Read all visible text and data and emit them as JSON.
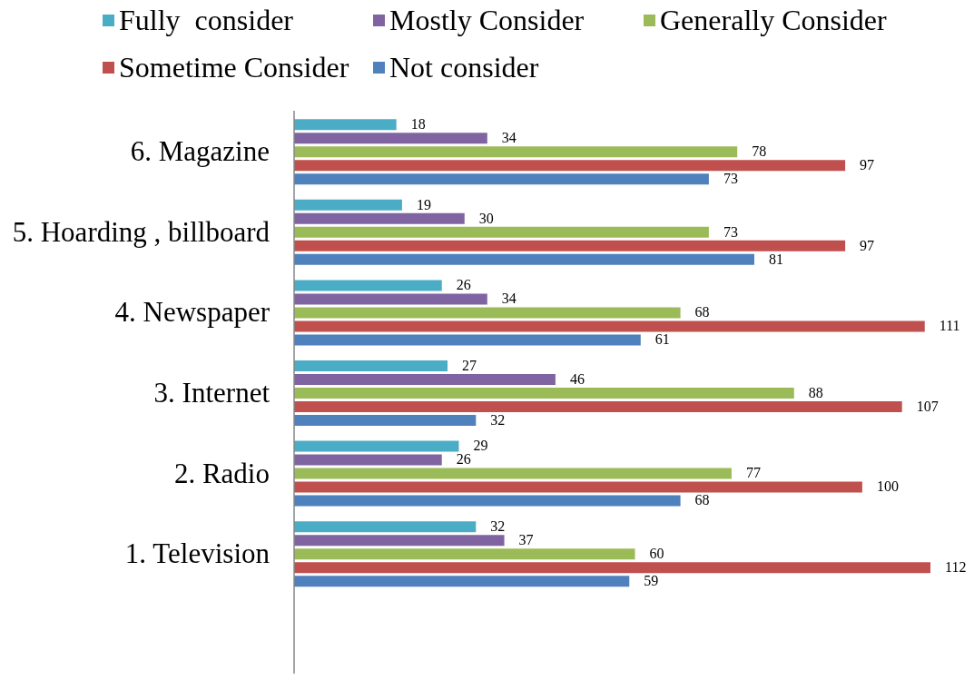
{
  "chart_data": {
    "type": "bar",
    "orientation": "horizontal",
    "categories": [
      "6. Magazine",
      "5. Hoarding , billboard",
      "4. Newspaper",
      "3. Internet",
      "2. Radio",
      "1. Television",
      null
    ],
    "series": [
      {
        "name": "Fully  consider",
        "color": "#4bacc6",
        "values": [
          18,
          19,
          26,
          27,
          29,
          32,
          null
        ]
      },
      {
        "name": "Mostly Consider",
        "color": "#8064a2",
        "values": [
          34,
          30,
          34,
          46,
          26,
          37,
          null
        ]
      },
      {
        "name": "Generally Consider",
        "color": "#9bbb59",
        "values": [
          78,
          73,
          68,
          88,
          77,
          60,
          null
        ]
      },
      {
        "name": "Sometime Consider",
        "color": "#c0504d",
        "values": [
          97,
          97,
          111,
          107,
          100,
          112,
          null
        ]
      },
      {
        "name": "Not consider",
        "color": "#4f81bd",
        "values": [
          73,
          81,
          61,
          32,
          68,
          59,
          null
        ]
      }
    ],
    "data_labels": true,
    "legend": "top",
    "tick_labels": "y"
  }
}
